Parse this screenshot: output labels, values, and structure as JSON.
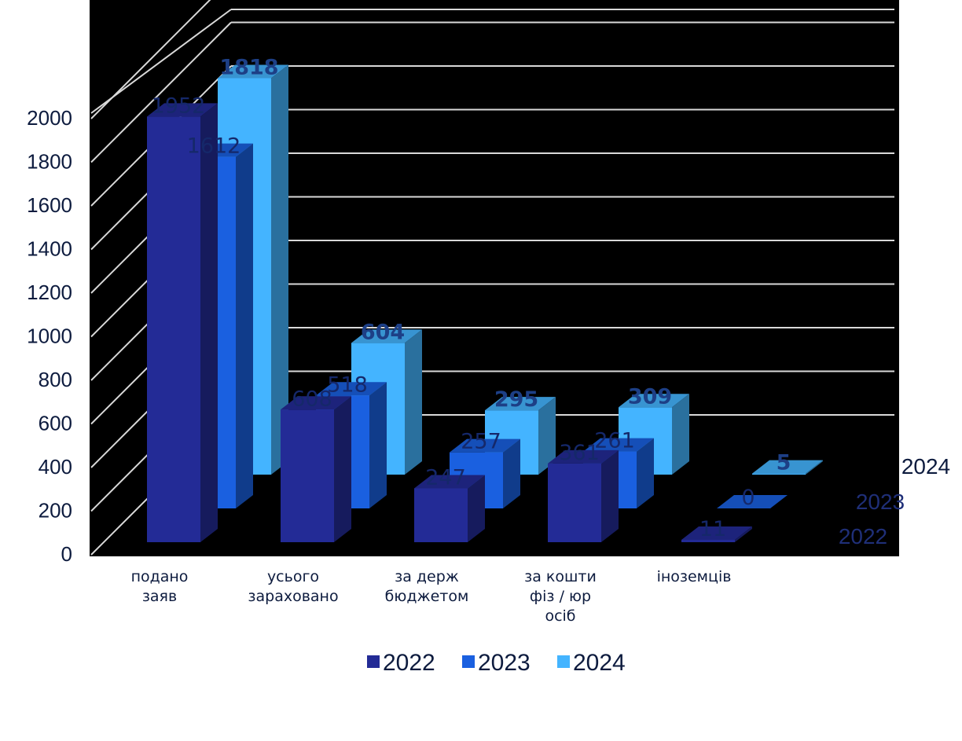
{
  "chart_data": {
    "type": "bar",
    "style": "3d-clustered-depth",
    "categories": [
      [
        "подано",
        "заяв"
      ],
      [
        "усього",
        "зараховано"
      ],
      [
        "за держ",
        "бюджетом"
      ],
      [
        "за кошти",
        "фіз / юр",
        "осіб"
      ],
      [
        "іноземців"
      ]
    ],
    "series": [
      {
        "name": "2022",
        "values": [
          1952,
          608,
          247,
          361,
          11
        ],
        "color": "#232b96"
      },
      {
        "name": "2023",
        "values": [
          1612,
          518,
          257,
          261,
          0
        ],
        "color": "#1a60e0"
      },
      {
        "name": "2024",
        "values": [
          1818,
          604,
          295,
          309,
          5
        ],
        "color": "#44b4ff"
      }
    ],
    "ylim": [
      0,
      2000
    ],
    "yticks": [
      "0",
      "200",
      "400",
      "600",
      "800",
      "1000",
      "1200",
      "1400",
      "1600",
      "1800",
      "2000"
    ],
    "grid": true,
    "legend": "bottom",
    "background": "#000000"
  }
}
